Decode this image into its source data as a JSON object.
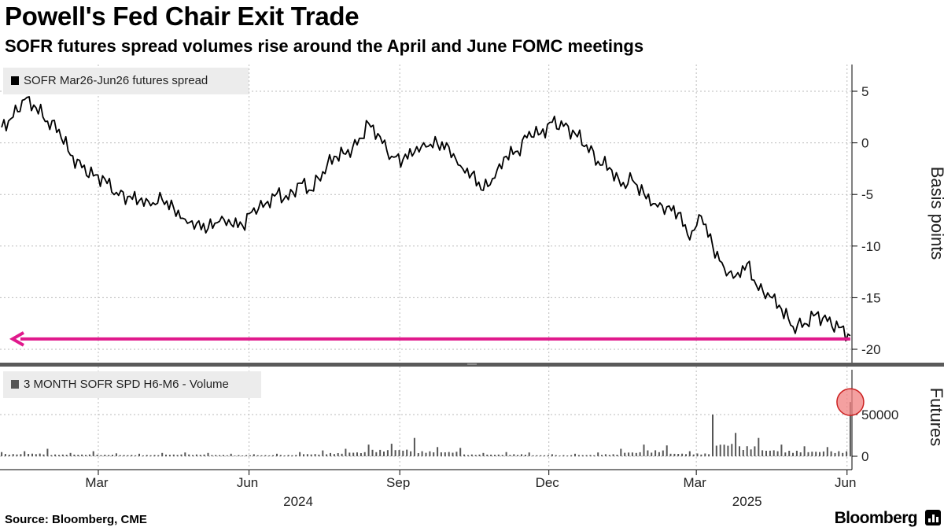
{
  "header": {
    "title": "Powell's Fed Chair Exit Trade",
    "subtitle": "SOFR futures spread volumes rise around the April and June FOMC meetings"
  },
  "footer": {
    "source": "Source: Bloomberg, CME",
    "brand": "Bloomberg"
  },
  "colors": {
    "line": "#000000",
    "volume_bar": "#555555",
    "arrow": "#e0198c",
    "highlight_circle": "#f08080",
    "grid": "#bbbbbb"
  },
  "chart_data": [
    {
      "type": "line",
      "series": [
        {
          "name": "SOFR Mar26-Jun26 futures spread",
          "x": [
            "2024-01-02",
            "2024-01-09",
            "2024-01-16",
            "2024-01-23",
            "2024-01-30",
            "2024-02-06",
            "2024-02-13",
            "2024-02-20",
            "2024-02-27",
            "2024-03-05",
            "2024-03-12",
            "2024-03-19",
            "2024-03-26",
            "2024-04-02",
            "2024-04-09",
            "2024-04-16",
            "2024-04-23",
            "2024-04-30",
            "2024-05-07",
            "2024-05-14",
            "2024-05-21",
            "2024-05-28",
            "2024-06-04",
            "2024-06-11",
            "2024-06-18",
            "2024-06-25",
            "2024-07-02",
            "2024-07-09",
            "2024-07-16",
            "2024-07-23",
            "2024-07-30",
            "2024-08-06",
            "2024-08-13",
            "2024-08-20",
            "2024-08-27",
            "2024-09-03",
            "2024-09-10",
            "2024-09-17",
            "2024-09-24",
            "2024-10-01",
            "2024-10-08",
            "2024-10-15",
            "2024-10-22",
            "2024-10-29",
            "2024-11-05",
            "2024-11-12",
            "2024-11-19",
            "2024-11-26",
            "2024-12-03",
            "2024-12-10",
            "2024-12-17",
            "2024-12-24",
            "2024-12-31",
            "2025-01-07",
            "2025-01-14",
            "2025-01-21",
            "2025-01-28",
            "2025-02-04",
            "2025-02-11",
            "2025-02-18",
            "2025-02-25",
            "2025-03-04",
            "2025-03-11",
            "2025-03-18",
            "2025-03-25",
            "2025-04-01",
            "2025-04-08",
            "2025-04-15",
            "2025-04-22",
            "2025-04-29",
            "2025-05-06",
            "2025-05-13",
            "2025-05-20",
            "2025-05-27",
            "2025-06-03"
          ],
          "values": [
            1.5,
            2.5,
            4.2,
            3.4,
            2.1,
            1.3,
            -1.2,
            -2.4,
            -3.2,
            -3.5,
            -4.8,
            -5.2,
            -5.6,
            -6.1,
            -5.5,
            -6.3,
            -7.4,
            -7.8,
            -8.3,
            -7.6,
            -7.9,
            -8.0,
            -6.3,
            -5.9,
            -4.9,
            -5.5,
            -3.9,
            -4.6,
            -2.8,
            -1.3,
            -1.1,
            -0.2,
            1.9,
            0.6,
            -1.3,
            -1.6,
            -0.9,
            -0.4,
            -0.1,
            -0.4,
            -2.2,
            -3.0,
            -4.6,
            -3.4,
            -1.3,
            -0.8,
            1.1,
            0.9,
            2.0,
            1.6,
            0.9,
            -0.2,
            -1.8,
            -2.4,
            -4.2,
            -3.6,
            -4.9,
            -5.9,
            -6.2,
            -6.8,
            -9.4,
            -7.1,
            -10.0,
            -12.1,
            -12.9,
            -11.7,
            -14.3,
            -14.9,
            -16.1,
            -17.8,
            -17.5,
            -16.6,
            -17.3,
            -17.9,
            -18.7
          ]
        }
      ],
      "xlabel": "",
      "ylabel": "Basis points",
      "ylim": [
        -21.5,
        7
      ],
      "yticks": [
        5,
        0,
        -5,
        -10,
        -15,
        -20
      ],
      "ytick_labels": [
        "5",
        "0",
        "-5",
        "-10",
        "-15",
        "-20"
      ],
      "annotation": "pink arrow pointing left at -19",
      "annotation_value": -19,
      "grid": true,
      "legend": "top-left"
    },
    {
      "type": "bar",
      "series": [
        {
          "name": "3 MONTH SOFR SPD H6-M6 - Volume",
          "x": [
            "2024-01-02",
            "2024-01-16",
            "2024-01-30",
            "2024-02-13",
            "2024-02-27",
            "2024-03-12",
            "2024-03-26",
            "2024-04-09",
            "2024-04-23",
            "2024-05-07",
            "2024-05-21",
            "2024-06-04",
            "2024-06-18",
            "2024-07-02",
            "2024-07-16",
            "2024-07-30",
            "2024-08-13",
            "2024-08-27",
            "2024-09-10",
            "2024-09-24",
            "2024-10-08",
            "2024-10-22",
            "2024-11-05",
            "2024-11-19",
            "2024-12-03",
            "2024-12-17",
            "2024-12-31",
            "2025-01-14",
            "2025-01-28",
            "2025-02-11",
            "2025-02-25",
            "2025-03-11",
            "2025-03-25",
            "2025-04-08",
            "2025-04-22",
            "2025-05-06",
            "2025-05-20",
            "2025-06-03"
          ],
          "values": [
            5000,
            6000,
            9000,
            4000,
            6000,
            3500,
            3000,
            4000,
            4500,
            4000,
            3000,
            2500,
            3000,
            5000,
            7000,
            9000,
            14000,
            15000,
            22000,
            11000,
            10000,
            4000,
            5000,
            4500,
            2500,
            3000,
            4500,
            9000,
            14000,
            13000,
            6000,
            50000,
            28000,
            22000,
            14000,
            12000,
            11000,
            65000
          ]
        }
      ],
      "xlabel": "",
      "ylabel": "Futures",
      "ylim": [
        0,
        90000
      ],
      "yticks": [
        0,
        50000
      ],
      "ytick_labels": [
        "0",
        "50000"
      ],
      "annotation": "red circle highlighting latest spike",
      "grid": true,
      "legend": "top-left"
    }
  ],
  "x_axis": {
    "month_labels": [
      {
        "label": "Mar",
        "date": "2024-03-01"
      },
      {
        "label": "Jun",
        "date": "2024-06-01"
      },
      {
        "label": "Sep",
        "date": "2024-09-01"
      },
      {
        "label": "Dec",
        "date": "2024-12-01"
      },
      {
        "label": "Mar",
        "date": "2025-03-01"
      },
      {
        "label": "Jun",
        "date": "2025-06-01"
      }
    ],
    "year_labels": [
      {
        "label": "2024",
        "date": "2024-07-01"
      },
      {
        "label": "2025",
        "date": "2025-04-01"
      }
    ],
    "start": "2024-01-01",
    "end": "2025-06-04"
  }
}
